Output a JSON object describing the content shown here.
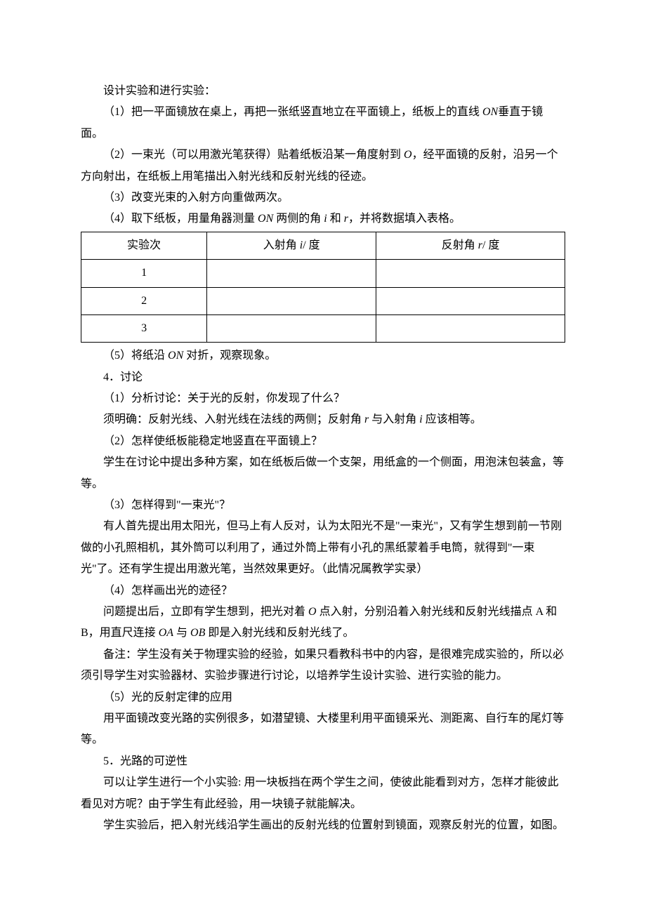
{
  "p1": "设计实验和进行实验：",
  "p2a": "（1）把一平面镜放在桌上，再把一张纸竖直地立在平面镜上，纸板上的直线 ",
  "p2b": "ON",
  "p2c": "垂直于镜面。",
  "p3a": "（2）一束光（可以用激光笔获得）贴着纸板沿某一角度射到 ",
  "p3b": "O",
  "p3c": "，经平面镜的反射，沿另一个方向射出，在纸板上用笔描出入射光线和反射光线的径迹。",
  "p4": "（3）改变光束的入射方向重做两次。",
  "p5a": "（4）取下纸板，用量角器测量 ",
  "p5b": "ON",
  "p5c": " 两侧的角 ",
  "p5d": "i",
  "p5e": " 和 ",
  "p5f": "r",
  "p5g": "，并将数据填入表格。",
  "table": {
    "header": {
      "c0": "实验次",
      "c1_a": "入射角 ",
      "c1_b": "i",
      "c1_c": "/ 度",
      "c2_a": "反射角 ",
      "c2_b": "r",
      "c2_c": "/ 度"
    },
    "rows": [
      {
        "c0": "1",
        "c1": "",
        "c2": ""
      },
      {
        "c0": "2",
        "c1": "",
        "c2": ""
      },
      {
        "c0": "3",
        "c1": "",
        "c2": ""
      }
    ]
  },
  "p6a": "（5）将纸沿 ",
  "p6b": "ON",
  "p6c": " 对折，观察现象。",
  "p7": "4．讨论",
  "p8": "（1）分析讨论：关于光的反射，你发现了什么？",
  "p9a": "须明确：反射光线、入射光线在法线的两侧；反射角 ",
  "p9b": "r",
  "p9c": " 与入射角 ",
  "p9d": "i",
  "p9e": " 应该相等。",
  "p10": "（2）怎样使纸板能稳定地竖直在平面镜上？",
  "p11": "学生在讨论中提出多种方案，如在纸板后做一个支架，用纸盒的一个侧面，用泡沫包装盒，等等。",
  "p12": "（3）怎样得到\"一束光\"？",
  "p13": "有人首先提出用太阳光，但马上有人反对，认为太阳光不是\"一束光\"，又有学生想到前一节刚做的小孔照相机，其外筒可以利用了，通过外筒上带有小孔的黑纸蒙着手电筒，就得到\"一束光\"了。还有学生提出用激光笔，当然效果更好。（此情况属教学实录）",
  "p14": "（4）怎样画出光的迹径？",
  "p15a": "问题提出后，立即有学生想到，把光对着 ",
  "p15b": "O",
  "p15c": " 点入射，分别沿着入射光线和反射光线描点 A 和 B，用直尺连接 ",
  "p15d": "OA",
  "p15e": " 与 ",
  "p15f": "OB",
  "p15g": " 即是入射光线和反射光线了。",
  "p16": "备注：学生没有关于物理实验的经验，如果只看教科书中的内容，是很难完成实验的，所以必须引导学生对实验器材、实验步骤进行讨论，以培养学生设计实验、进行实验的能力。",
  "p17": "（5）光的反射定律的应用",
  "p18": "用平面镜改变光路的实例很多，如潜望镜、大楼里利用平面镜采光、测距离、自行车的尾灯等等。",
  "p19": "5．光路的可逆性",
  "p20": "可以让学生进行一个小实验: 用一块板挡在两个学生之间，使彼此能看到对方，怎样才能彼此看见对方呢？由于学生有此经验，用一块镜子就能解决。",
  "p21": "学生实验后，把入射光线沿学生画出的反射光线的位置射到镜面，观察反射光的位置，如图。"
}
